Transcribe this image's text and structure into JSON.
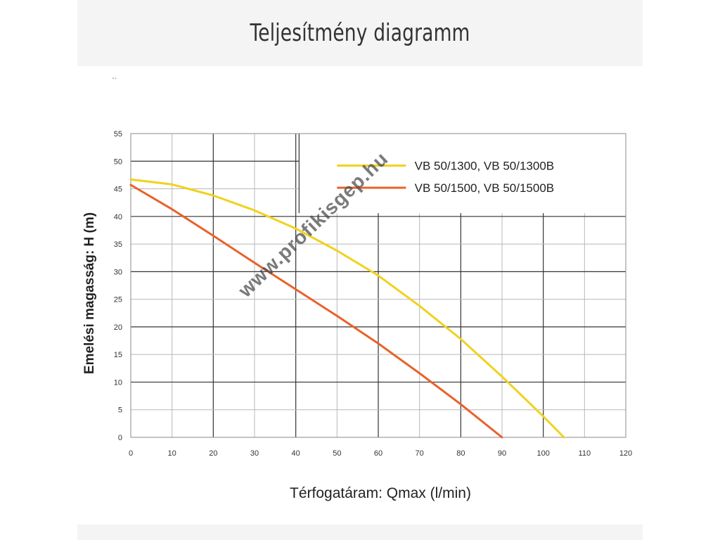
{
  "page": {
    "title": "Teljesítmény diagramm",
    "corner_mark": "ᐩᐩ"
  },
  "chart_data": {
    "type": "line",
    "xlabel": "Térfogatáram: Qmax (l/min)",
    "ylabel": "Emelési magasság: H (m)",
    "xlim": [
      0,
      120
    ],
    "ylim": [
      0,
      55
    ],
    "xticks": [
      0,
      10,
      20,
      30,
      40,
      50,
      60,
      70,
      80,
      90,
      100,
      110,
      120
    ],
    "yticks": [
      0,
      5,
      10,
      15,
      20,
      25,
      30,
      35,
      40,
      45,
      50,
      55
    ],
    "grid": true,
    "legend_position": "top-right",
    "watermark": "www.profikisgep.hu",
    "series": [
      {
        "name": "VB 50/1300, VB 50/1300B",
        "color": "#f0d21e",
        "x": [
          0,
          10,
          20,
          30,
          40,
          50,
          60,
          70,
          80,
          90,
          100,
          105
        ],
        "y": [
          46.7,
          45.8,
          43.8,
          41.1,
          37.8,
          33.8,
          29.3,
          23.8,
          17.8,
          11.0,
          3.8,
          0
        ]
      },
      {
        "name": "VB 50/1500, VB 50/1500B",
        "color": "#e8622a",
        "x": [
          0,
          10,
          20,
          30,
          40,
          50,
          60,
          70,
          80,
          90
        ],
        "y": [
          45.7,
          41.3,
          36.5,
          31.6,
          26.8,
          22.0,
          17.0,
          11.6,
          6.0,
          0
        ]
      }
    ]
  }
}
